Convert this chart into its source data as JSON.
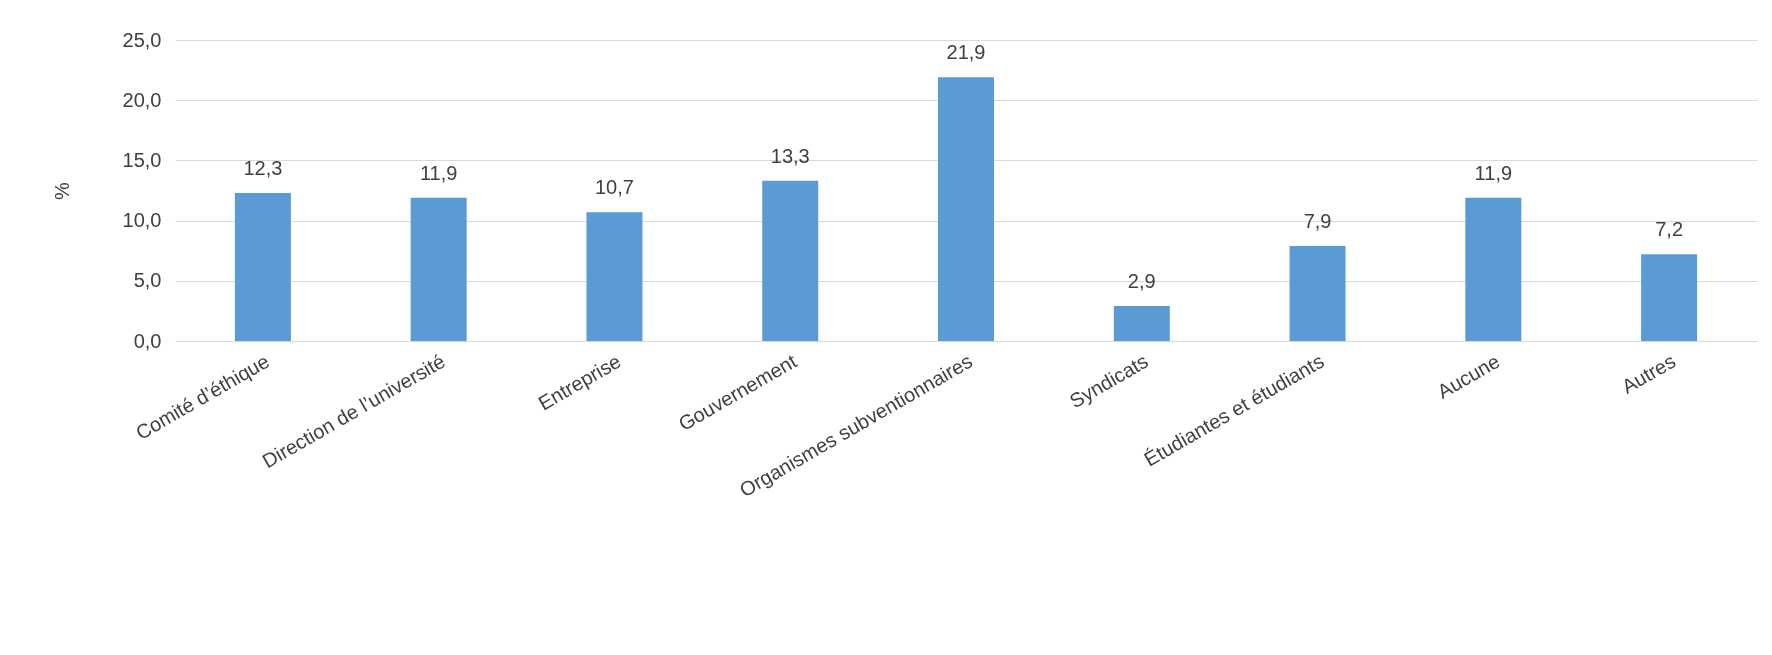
{
  "chart_data": {
    "type": "bar",
    "ylabel": "%",
    "categories": [
      "Comité d’éthique",
      "Direction de l’université",
      "Entreprise",
      "Gouvernement",
      "Organismes subventionnaires",
      "Syndicats",
      "Étudiantes et étudiants",
      "Aucune",
      "Autres"
    ],
    "values": [
      12.3,
      11.9,
      10.7,
      13.3,
      21.9,
      2.9,
      7.9,
      11.9,
      7.2
    ],
    "value_labels": [
      "12,3",
      "11,9",
      "10,7",
      "13,3",
      "21,9",
      "2,9",
      "7,9",
      "11,9",
      "7,2"
    ],
    "color": "#5b9bd5",
    "ylim": [
      0,
      25
    ],
    "yticks": [
      {
        "value": 0,
        "label": "0,0"
      },
      {
        "value": 5,
        "label": "5,0"
      },
      {
        "value": 10,
        "label": "10,0"
      },
      {
        "value": 15,
        "label": "15,0"
      },
      {
        "value": 20,
        "label": "20,0"
      },
      {
        "value": 25,
        "label": "25,0"
      }
    ],
    "grid": "y"
  }
}
